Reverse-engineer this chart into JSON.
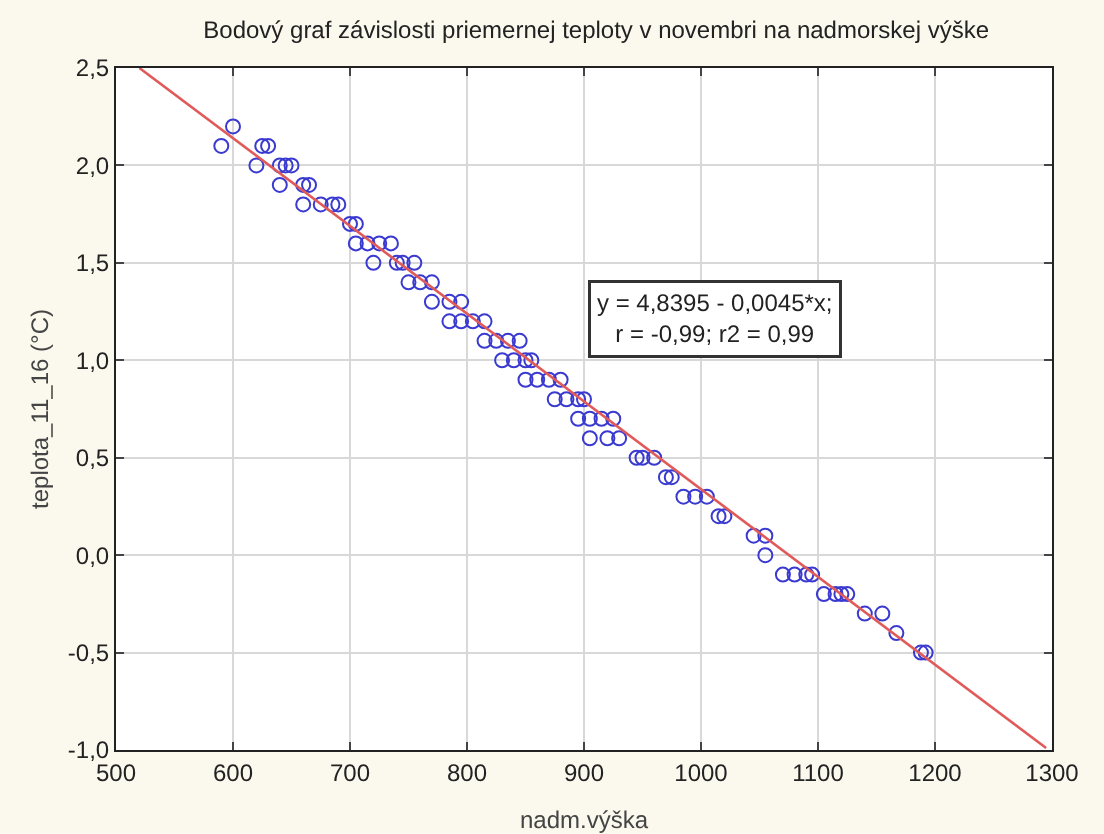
{
  "chart_data": {
    "type": "scatter",
    "title": "Bodový graf závislosti priemernej teploty v novembri na nadmorskej výške",
    "xlabel": "nadm.výška",
    "ylabel": "teplota_11_16 (°C)",
    "xlim": [
      500,
      1300
    ],
    "xticks": [
      500,
      600,
      700,
      800,
      900,
      1000,
      1100,
      1200,
      1300
    ],
    "ylim": [
      -1.0,
      2.5
    ],
    "yticks": [
      {
        "value": -1.0,
        "label": "-1,0"
      },
      {
        "value": -0.5,
        "label": "-0,5"
      },
      {
        "value": 0.0,
        "label": "0,0"
      },
      {
        "value": 0.5,
        "label": "0,5"
      },
      {
        "value": 1.0,
        "label": "1,0"
      },
      {
        "value": 1.5,
        "label": "1,5"
      },
      {
        "value": 2.0,
        "label": "2,0"
      },
      {
        "value": 2.5,
        "label": "2,5"
      }
    ],
    "grid": true,
    "legend": false,
    "marker": "circle",
    "series": [
      {
        "color": "#3a3ad0",
        "x": [
          600,
          590,
          625,
          630,
          620,
          640,
          645,
          650,
          640,
          660,
          665,
          660,
          675,
          685,
          690,
          700,
          705,
          705,
          715,
          725,
          735,
          720,
          740,
          745,
          755,
          750,
          760,
          770,
          770,
          785,
          795,
          785,
          795,
          805,
          815,
          815,
          825,
          835,
          845,
          830,
          840,
          850,
          855,
          850,
          860,
          870,
          880,
          875,
          885,
          895,
          900,
          895,
          905,
          915,
          925,
          905,
          920,
          930,
          945,
          950,
          960,
          970,
          975,
          985,
          995,
          1005,
          1015,
          1020,
          1045,
          1055,
          1055,
          1070,
          1080,
          1090,
          1095,
          1105,
          1115,
          1120,
          1125,
          1140,
          1155,
          1167,
          1188,
          1192
        ],
        "values": [
          2.2,
          2.1,
          2.1,
          2.1,
          2.0,
          2.0,
          2.0,
          2.0,
          1.9,
          1.9,
          1.9,
          1.8,
          1.8,
          1.8,
          1.8,
          1.7,
          1.7,
          1.6,
          1.6,
          1.6,
          1.6,
          1.5,
          1.5,
          1.5,
          1.5,
          1.4,
          1.4,
          1.4,
          1.3,
          1.3,
          1.3,
          1.2,
          1.2,
          1.2,
          1.2,
          1.1,
          1.1,
          1.1,
          1.1,
          1.0,
          1.0,
          1.0,
          1.0,
          0.9,
          0.9,
          0.9,
          0.9,
          0.8,
          0.8,
          0.8,
          0.8,
          0.7,
          0.7,
          0.7,
          0.7,
          0.6,
          0.6,
          0.6,
          0.5,
          0.5,
          0.5,
          0.4,
          0.4,
          0.3,
          0.3,
          0.3,
          0.2,
          0.2,
          0.1,
          0.1,
          0.0,
          -0.1,
          -0.1,
          -0.1,
          -0.1,
          -0.2,
          -0.2,
          -0.2,
          -0.2,
          -0.3,
          -0.3,
          -0.4,
          -0.5,
          -0.5
        ]
      },
      {
        "type": "line",
        "color": "#e05a5a",
        "marker": "none",
        "line_style": "solid",
        "x": [
          520,
          1295
        ],
        "values": [
          2.5,
          -0.99
        ]
      }
    ],
    "annotations": [
      "y = 4,8395 - 0,0045*x;\nr = -0,99; r2 = 0,99"
    ]
  }
}
